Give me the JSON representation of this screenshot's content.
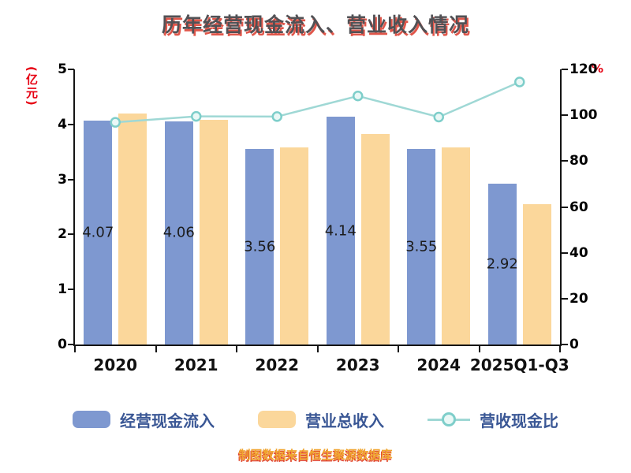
{
  "chart_data": {
    "type": "bar",
    "title": "历年经营现金流入、营业收入情况",
    "categories": [
      "2020",
      "2021",
      "2022",
      "2023",
      "2024",
      "2025Q1-Q3"
    ],
    "series": [
      {
        "name": "经营现金流入",
        "type": "bar",
        "axis": "left",
        "color": "#7e98d0",
        "values": [
          4.07,
          4.06,
          3.56,
          4.14,
          3.55,
          2.92
        ]
      },
      {
        "name": "营业总收入",
        "type": "bar",
        "axis": "left",
        "color": "#fbd79b",
        "values": [
          4.2,
          4.08,
          3.58,
          3.82,
          3.58,
          2.55
        ]
      },
      {
        "name": "营收现金比",
        "type": "line",
        "axis": "right",
        "color": "#9fd8d5",
        "marker_fill": "#eaf8f6",
        "marker_stroke": "#7ececa",
        "values": [
          96.9,
          99.5,
          99.4,
          108.4,
          99.2,
          114.5
        ]
      }
    ],
    "bar_labels": [
      "4.07",
      "4.06",
      "3.56",
      "4.14",
      "3.55",
      "2.92"
    ],
    "left_axis": {
      "label": "(亿元)",
      "min": 0,
      "max": 5,
      "ticks": [
        0,
        1,
        2,
        3,
        4,
        5
      ]
    },
    "right_axis": {
      "label": "%",
      "min": 0,
      "max": 120,
      "ticks": [
        0,
        20,
        40,
        60,
        80,
        100,
        120
      ]
    },
    "legend_position": "bottom",
    "grid": false,
    "footer": "制图数据来自恒生聚源数据库"
  },
  "colors": {
    "title_text": "#515155",
    "title_shadow": "#e0564a",
    "axis_unit": "#e60012",
    "legend_text": "#3a5795",
    "footer_text": "#f0a42e",
    "footer_shadow": "#e0452f"
  }
}
